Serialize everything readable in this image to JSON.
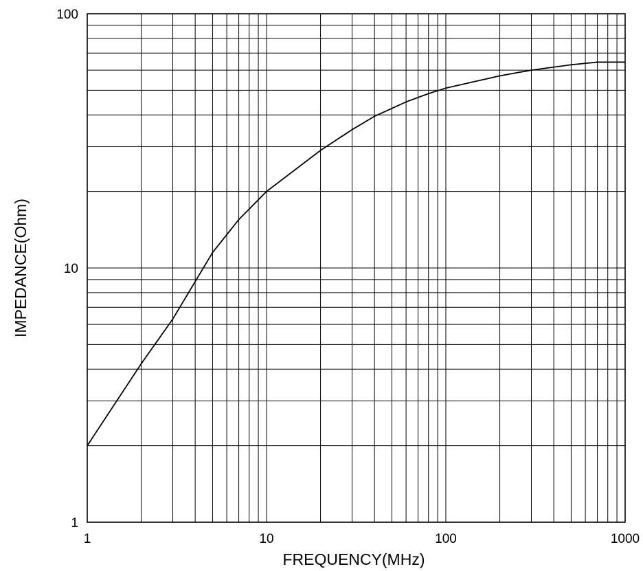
{
  "chart_data": {
    "type": "line",
    "title": "",
    "xlabel": "FREQUENCY(MHz)",
    "ylabel": "IMPEDANCE(Ohm)",
    "x_scale": "log",
    "y_scale": "log",
    "xlim": [
      1,
      1000
    ],
    "ylim": [
      1,
      100
    ],
    "x_ticks": [
      "1",
      "10",
      "100",
      "1000"
    ],
    "y_ticks": [
      "1",
      "10",
      "100"
    ],
    "grid": true,
    "line_color": "#000000",
    "series": [
      {
        "x": [
          1,
          2,
          3,
          5,
          7,
          10,
          20,
          30,
          40,
          60,
          80,
          100,
          200,
          300,
          500,
          700,
          1000
        ],
        "values": [
          2.0,
          4.2,
          6.3,
          11.5,
          15.5,
          20.0,
          29.0,
          35.0,
          39.5,
          45.0,
          48.5,
          51.0,
          57.0,
          60.0,
          63.0,
          64.5,
          64.5
        ]
      }
    ]
  }
}
